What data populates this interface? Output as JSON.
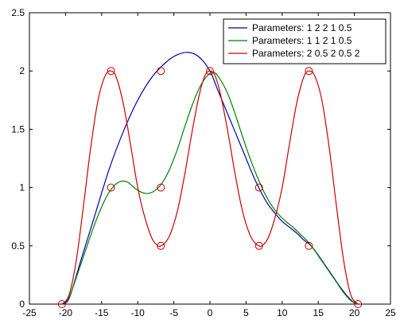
{
  "chart_data": {
    "type": "line",
    "xlim": [
      -25,
      25
    ],
    "ylim": [
      0,
      2.5
    ],
    "x_ticks": [
      "-25",
      "-20",
      "-15",
      "-10",
      "-5",
      "0",
      "5",
      "10",
      "15",
      "20",
      "25"
    ],
    "y_ticks": [
      "0",
      "0.5",
      "1",
      "1.5",
      "2",
      "2.5"
    ],
    "grid": false,
    "legend_position": "top-right",
    "series": [
      {
        "name": "Parameters: 1 2 2 1 0.5",
        "color": "#0000aa",
        "x": [
          -20.5,
          -19.5,
          -18,
          -16,
          -14,
          -12,
          -10,
          -8,
          -6,
          -4.5,
          -3,
          -1.5,
          0,
          1,
          2,
          3,
          4,
          5,
          6,
          7,
          8,
          9,
          10,
          11,
          12,
          13,
          14,
          15,
          16,
          17,
          18,
          19,
          20,
          20.5
        ],
        "y": [
          0,
          0.05,
          0.35,
          0.75,
          1.15,
          1.48,
          1.75,
          1.95,
          2.08,
          2.14,
          2.16,
          2.12,
          2.0,
          1.85,
          1.7,
          1.55,
          1.4,
          1.25,
          1.1,
          0.97,
          0.86,
          0.78,
          0.71,
          0.66,
          0.61,
          0.55,
          0.5,
          0.42,
          0.33,
          0.24,
          0.15,
          0.07,
          0.01,
          0
        ]
      },
      {
        "name": "Parameters: 1 1 2 1 0.5",
        "color": "#008000",
        "x": [
          -20.5,
          -19.5,
          -18,
          -16,
          -14.5,
          -13.5,
          -12.5,
          -11.5,
          -10.5,
          -9.5,
          -8.5,
          -7.5,
          -6.5,
          -5.5,
          -4.5,
          -3.5,
          -2.5,
          -1.5,
          -0.5,
          0.5,
          1.5,
          2.5,
          3.5,
          4.5,
          5.5,
          6.5,
          7.5,
          8.5,
          9.5,
          10.5,
          11.5,
          12.5,
          13.5,
          14.5,
          15.5,
          16.5,
          17.5,
          18.5,
          19.5,
          20.5
        ],
        "y": [
          0,
          0.06,
          0.32,
          0.68,
          0.9,
          1.0,
          1.05,
          1.05,
          1.0,
          0.96,
          0.95,
          0.98,
          1.05,
          1.17,
          1.33,
          1.52,
          1.7,
          1.85,
          1.95,
          1.99,
          1.92,
          1.8,
          1.63,
          1.44,
          1.26,
          1.1,
          0.96,
          0.85,
          0.77,
          0.71,
          0.66,
          0.6,
          0.54,
          0.46,
          0.37,
          0.28,
          0.19,
          0.1,
          0.03,
          0
        ]
      },
      {
        "name": "Parameters: 2 0.5 2 0.5 2",
        "color": "#cc0000",
        "control_points": {
          "x": [
            -20.5,
            -13.7,
            -6.8,
            0,
            6.8,
            13.7,
            20.5
          ],
          "y": [
            0,
            2,
            0.5,
            2,
            0.5,
            2,
            0
          ]
        },
        "x": [
          -20.5,
          -19.5,
          -18.5,
          -17.5,
          -16.5,
          -15.5,
          -14.5,
          -13.7,
          -13,
          -12,
          -11,
          -10,
          -9,
          -8,
          -7.2,
          -6.8,
          -6.3,
          -5.5,
          -4.5,
          -3.5,
          -2.5,
          -1.5,
          -0.7,
          0,
          0.7,
          1.5,
          2.5,
          3.5,
          4.5,
          5.5,
          6.3,
          6.8,
          7.2,
          8,
          9,
          10,
          11,
          12,
          13,
          13.7,
          14.5,
          15.5,
          16.5,
          17.5,
          18.5,
          19.5,
          20.5
        ],
        "y": [
          0,
          0.08,
          0.38,
          0.85,
          1.35,
          1.75,
          1.96,
          2.0,
          1.95,
          1.72,
          1.37,
          1.0,
          0.74,
          0.56,
          0.5,
          0.5,
          0.52,
          0.6,
          0.8,
          1.11,
          1.47,
          1.79,
          1.96,
          2.0,
          1.96,
          1.79,
          1.47,
          1.11,
          0.8,
          0.6,
          0.52,
          0.5,
          0.5,
          0.56,
          0.74,
          1.0,
          1.37,
          1.72,
          1.95,
          2.0,
          1.96,
          1.75,
          1.35,
          0.85,
          0.38,
          0.08,
          0
        ]
      }
    ],
    "markers": [
      {
        "x": -20.5,
        "y": 0
      },
      {
        "x": -13.7,
        "y": 1
      },
      {
        "x": -13.7,
        "y": 2
      },
      {
        "x": -6.8,
        "y": 0.5
      },
      {
        "x": -6.8,
        "y": 1
      },
      {
        "x": -6.8,
        "y": 2
      },
      {
        "x": 0,
        "y": 2
      },
      {
        "x": 6.8,
        "y": 0.5
      },
      {
        "x": 6.8,
        "y": 1
      },
      {
        "x": 13.7,
        "y": 0.5
      },
      {
        "x": 13.7,
        "y": 2
      },
      {
        "x": 20.5,
        "y": 0
      }
    ],
    "marker_color": "#cc0000"
  }
}
